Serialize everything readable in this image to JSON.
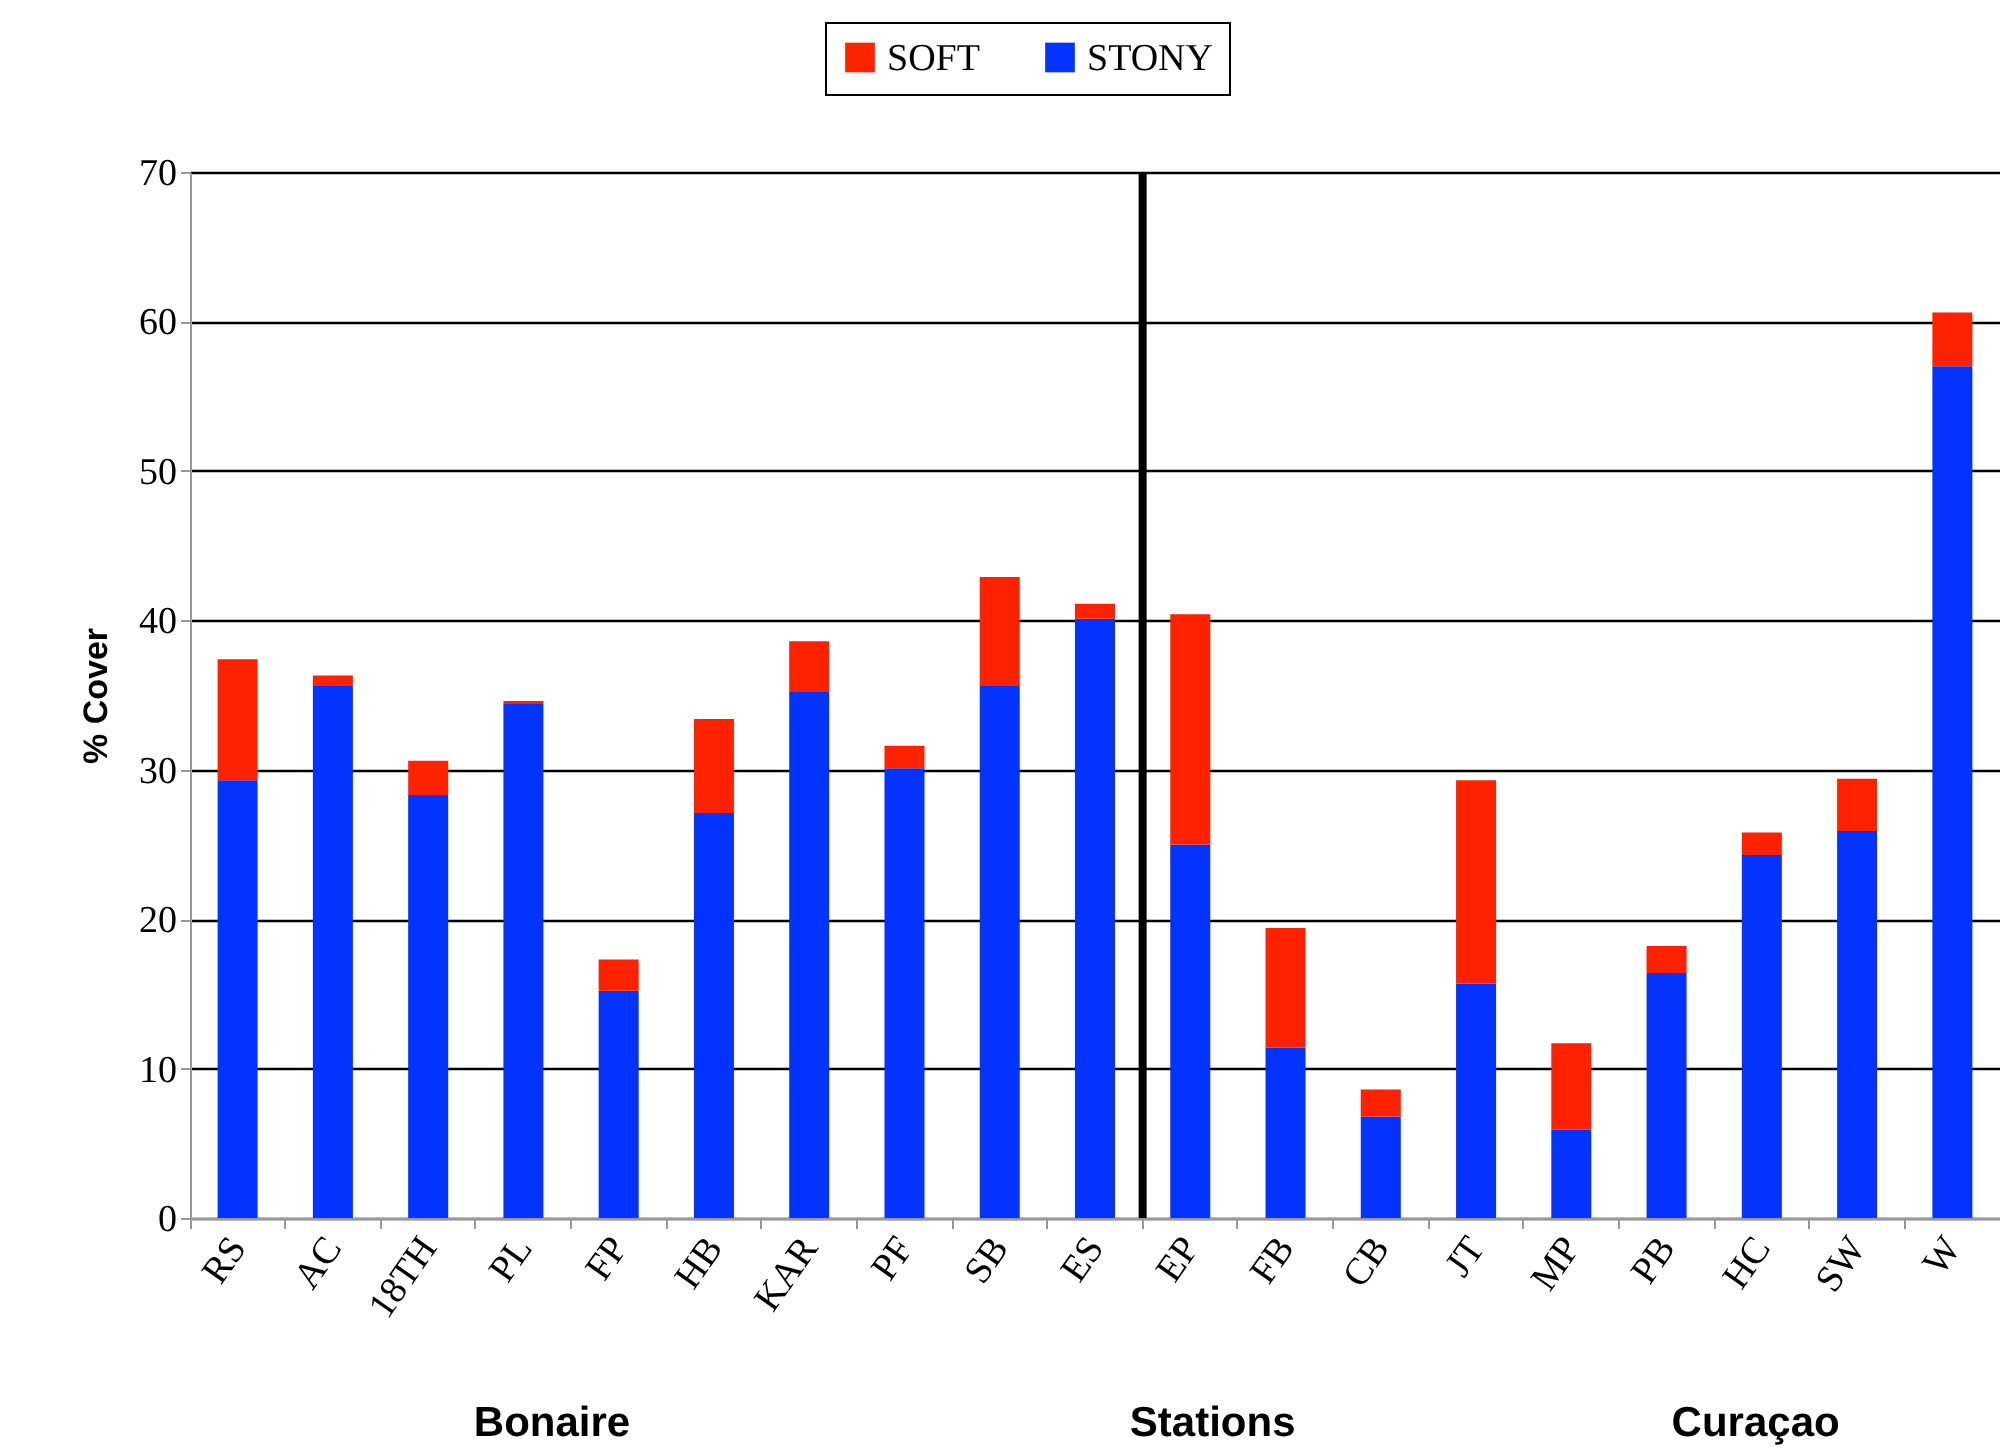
{
  "chart_data": {
    "type": "bar",
    "stacked": true,
    "ylabel": "% Cover",
    "categories": [
      "RS",
      "AC",
      "18TH",
      "PL",
      "FP",
      "HB",
      "KAR",
      "PF",
      "SB",
      "ES",
      "EP",
      "FB",
      "CB",
      "JT",
      "MP",
      "PB",
      "HC",
      "SW",
      "W"
    ],
    "series": [
      {
        "name": "STONY",
        "color": "#0433ff",
        "values": [
          29.3,
          35.6,
          28.3,
          34.4,
          15.2,
          27.1,
          35.2,
          30.1,
          35.6,
          40.1,
          25.0,
          11.4,
          6.8,
          15.7,
          5.9,
          16.4,
          24.3,
          25.9,
          57.0
        ]
      },
      {
        "name": "SOFT",
        "color": "#ff2200",
        "values": [
          8.1,
          0.7,
          2.3,
          0.2,
          2.1,
          6.3,
          3.4,
          1.5,
          7.3,
          1.0,
          15.4,
          8.0,
          1.8,
          13.6,
          5.8,
          1.8,
          1.5,
          3.5,
          3.6
        ]
      }
    ],
    "ylim": [
      0,
      70
    ],
    "yticks": [
      0,
      10,
      20,
      30,
      40,
      50,
      60,
      70
    ],
    "grid": "y",
    "legend": "top",
    "ref_lines": [
      {
        "axis": "x",
        "value": "EP",
        "color": "#000000"
      }
    ],
    "annotations": [
      "Bonaire",
      "Stations",
      "Curaçao"
    ]
  }
}
